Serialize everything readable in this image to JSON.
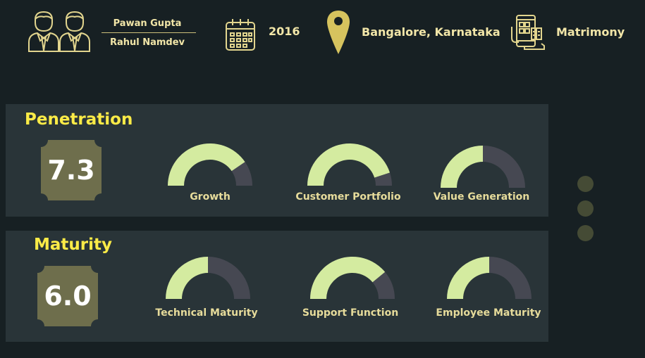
{
  "header": {
    "persons": [
      "Pawan Gupta",
      "Rahul Namdev"
    ],
    "year": "2016",
    "location": "Bangalore, Karnataka",
    "category": "Matrimony"
  },
  "colors": {
    "background": "#172023",
    "panel": "#293438",
    "accent_yellow": "#fbeb47",
    "gauge_fill": "#d4eba0",
    "gauge_track": "#464852",
    "badge": "#6e6e4c"
  },
  "penetration": {
    "title": "Penetration",
    "score": "7.3",
    "gauges": [
      {
        "label": "Growth",
        "value": 0.81
      },
      {
        "label": "Customer Portfolio",
        "value": 0.9
      },
      {
        "label": "Value Generation",
        "value": 0.5
      }
    ]
  },
  "maturity": {
    "title": "Maturity",
    "score": "6.0",
    "gauges": [
      {
        "label": "Technical Maturity",
        "value": 0.5
      },
      {
        "label": "Support Function",
        "value": 0.78
      },
      {
        "label": "Employee Maturity",
        "value": 0.5
      }
    ]
  },
  "pager": {
    "count": 3
  }
}
